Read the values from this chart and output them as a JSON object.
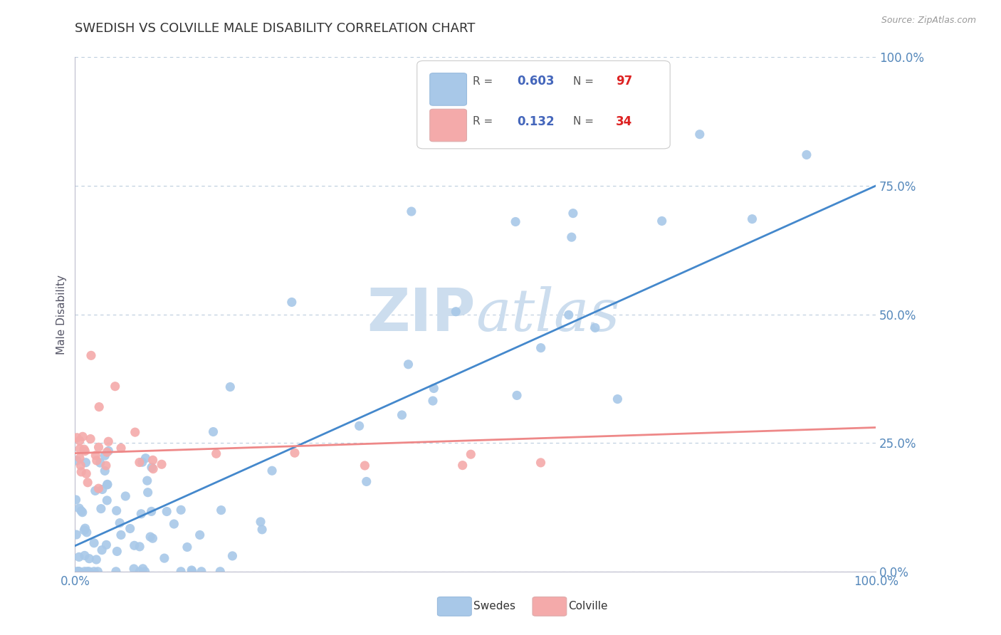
{
  "title": "SWEDISH VS COLVILLE MALE DISABILITY CORRELATION CHART",
  "source": "Source: ZipAtlas.com",
  "ylabel": "Male Disability",
  "ytick_labels": [
    "0.0%",
    "25.0%",
    "50.0%",
    "75.0%",
    "100.0%"
  ],
  "ytick_values": [
    0.0,
    0.25,
    0.5,
    0.75,
    1.0
  ],
  "swedish_R": 0.603,
  "swedish_N": 97,
  "colville_R": 0.132,
  "colville_N": 34,
  "swedish_color": "#A8C8E8",
  "colville_color": "#F4AAAA",
  "swedish_line_color": "#4488CC",
  "colville_line_color": "#EE8888",
  "legend_R_color": "#4466BB",
  "legend_N_color": "#DD2222",
  "background_color": "#FFFFFF",
  "watermark_color": "#CCDDEE",
  "title_color": "#333333",
  "axis_color": "#5588BB",
  "grid_color": "#BBCCDD"
}
